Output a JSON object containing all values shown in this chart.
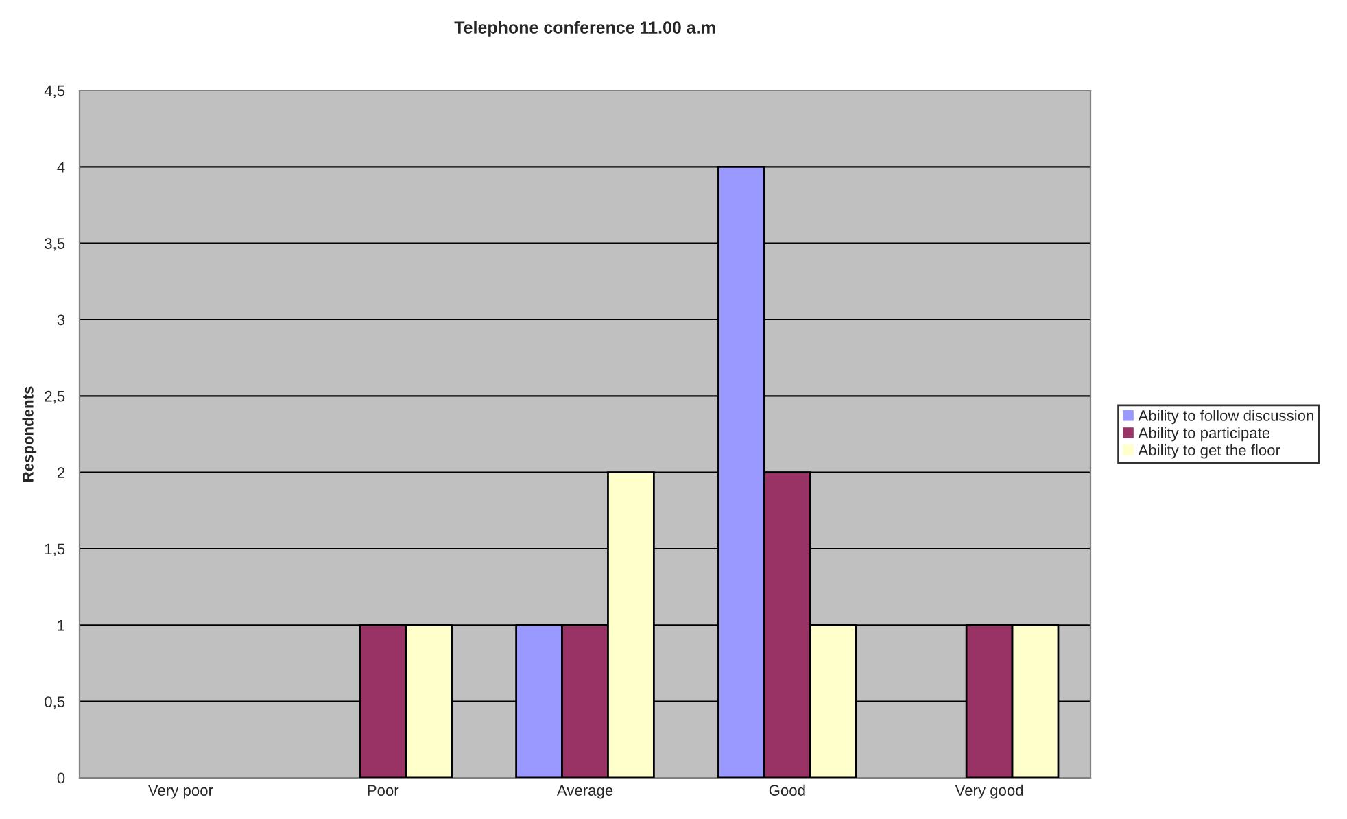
{
  "chart_data": {
    "type": "bar",
    "title": "Telephone conference 11.00 a.m",
    "ylabel": "Respondents",
    "categories": [
      "Very poor",
      "Poor",
      "Average",
      "Good",
      "Very good"
    ],
    "series": [
      {
        "name": "Ability to follow discussion",
        "color": "#9999ff",
        "values": [
          0,
          0,
          1,
          4,
          0
        ]
      },
      {
        "name": "Ability to participate",
        "color": "#993366",
        "values": [
          0,
          1,
          1,
          2,
          1
        ]
      },
      {
        "name": "Ability to get the floor",
        "color": "#ffffcc",
        "values": [
          0,
          1,
          2,
          1,
          1
        ]
      }
    ],
    "ylim": [
      0,
      4.5
    ],
    "yticks": [
      0,
      {
        "value": 0.5,
        "label": "0,5"
      },
      1,
      {
        "value": 1.5,
        "label": "1,5"
      },
      2,
      {
        "value": 2.5,
        "label": "2,5"
      },
      3,
      {
        "value": 3.5,
        "label": "3,5"
      },
      4,
      {
        "value": 4.5,
        "label": "4,5"
      }
    ],
    "grid": "y",
    "legend": "right"
  }
}
